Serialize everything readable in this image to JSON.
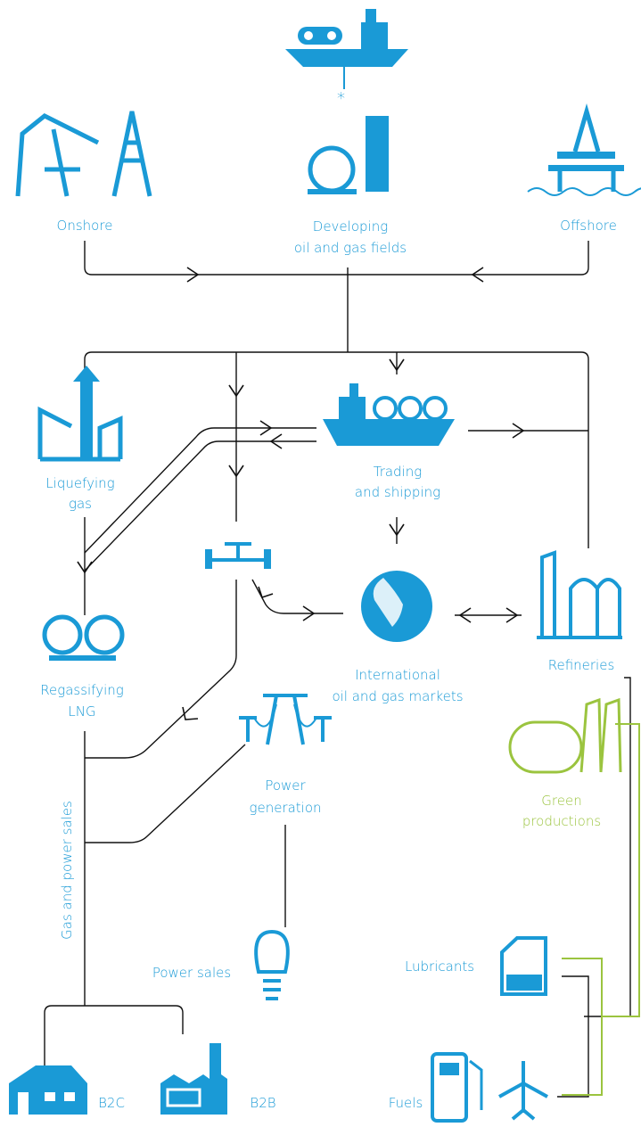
{
  "nodes": [
    {
      "id": "onshore",
      "label": [
        "Onshore"
      ]
    },
    {
      "id": "developing",
      "label": [
        "Developing",
        "oil and gas fields"
      ]
    },
    {
      "id": "offshore",
      "label": [
        "Offshore"
      ]
    },
    {
      "id": "liquefying",
      "label": [
        "Liquefying",
        "gas"
      ]
    },
    {
      "id": "trading",
      "label": [
        "Trading",
        "and shipping"
      ]
    },
    {
      "id": "regassifying",
      "label": [
        "Regassifying",
        "LNG"
      ]
    },
    {
      "id": "markets",
      "label": [
        "International",
        "oil and gas markets"
      ]
    },
    {
      "id": "refineries",
      "label": [
        "Refineries"
      ]
    },
    {
      "id": "green",
      "label": [
        "Green",
        "productions"
      ]
    },
    {
      "id": "power-generation",
      "label": [
        "Power",
        "generation"
      ]
    },
    {
      "id": "power-sales",
      "label": [
        "Power sales"
      ]
    },
    {
      "id": "gas-power-sales",
      "label": [
        "Gas and power sales"
      ]
    },
    {
      "id": "lubricants",
      "label": [
        "Lubricants"
      ]
    },
    {
      "id": "b2c",
      "label": [
        "B2C"
      ]
    },
    {
      "id": "b2b",
      "label": [
        "B2B"
      ]
    },
    {
      "id": "fuels",
      "label": [
        "Fuels"
      ]
    }
  ]
}
